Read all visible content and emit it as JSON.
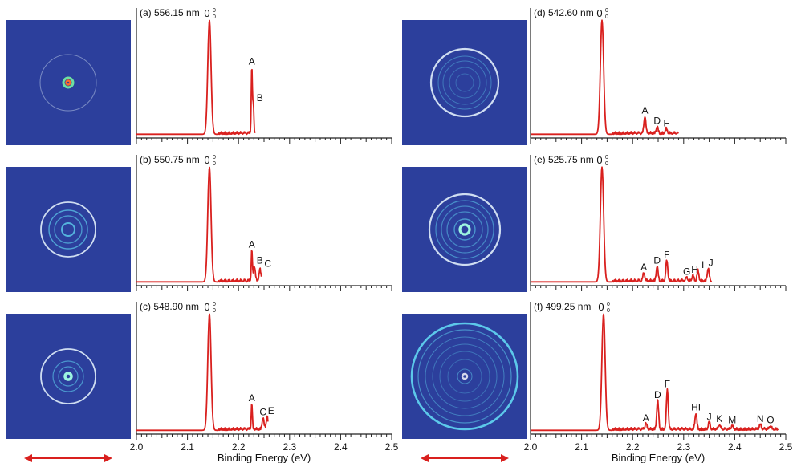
{
  "figure": {
    "xlabel": "Binding Energy (eV)",
    "x_ticks": [
      "2.0",
      "2.1",
      "2.2",
      "2.3",
      "2.4",
      "2.5"
    ],
    "colors": {
      "spectrum": "#d9201e",
      "axis": "#222222",
      "image_bg": "#2c3f9c",
      "ring": "#d8e6f5",
      "ring_bright": "#5fd0ee",
      "arrow": "#d9201e"
    },
    "left_arrow": "double-arrow",
    "right_arrow": "double-arrow"
  },
  "chart_data": [
    {
      "type": "line",
      "title": "(a) 556.15 nm",
      "xlim": [
        2.0,
        2.5
      ],
      "main_peak": {
        "label": "0",
        "x": 2.143,
        "height": 1.0
      },
      "peaks": [
        {
          "label": "A",
          "x": 2.226,
          "height": 0.58
        },
        {
          "label": "B",
          "x": 2.229,
          "height": 0.26
        }
      ],
      "x_end": 2.232
    },
    {
      "type": "line",
      "title": "(b) 550.75 nm",
      "xlim": [
        2.0,
        2.5
      ],
      "main_peak": {
        "label": "0",
        "x": 2.143,
        "height": 1.0
      },
      "peaks": [
        {
          "label": "A",
          "x": 2.226,
          "height": 0.27
        },
        {
          "label": "B",
          "x": 2.231,
          "height": 0.13
        },
        {
          "label": "C",
          "x": 2.242,
          "height": 0.1
        }
      ],
      "x_end": 2.245
    },
    {
      "type": "line",
      "title": "(c) 548.90 nm",
      "xlim": [
        2.0,
        2.5
      ],
      "main_peak": {
        "label": "0",
        "x": 2.143,
        "height": 1.0
      },
      "peaks": [
        {
          "label": "A",
          "x": 2.226,
          "height": 0.22
        },
        {
          "label": "C",
          "x": 2.248,
          "height": 0.1
        },
        {
          "label": "E",
          "x": 2.256,
          "height": 0.11
        }
      ],
      "x_end": 2.258
    },
    {
      "type": "line",
      "title": "(d) 542.60 nm",
      "xlim": [
        2.0,
        2.5
      ],
      "main_peak": {
        "label": "0",
        "x": 2.14,
        "height": 1.0
      },
      "peaks": [
        {
          "label": "A",
          "x": 2.224,
          "height": 0.15
        },
        {
          "label": "D",
          "x": 2.248,
          "height": 0.06
        },
        {
          "label": "F",
          "x": 2.266,
          "height": 0.04
        }
      ],
      "x_end": 2.29
    },
    {
      "type": "line",
      "title": "(e) 525.75 nm",
      "xlim": [
        2.0,
        2.5
      ],
      "main_peak": {
        "label": "0",
        "x": 2.14,
        "height": 1.0
      },
      "peaks": [
        {
          "label": "A",
          "x": 2.222,
          "height": 0.07
        },
        {
          "label": "D",
          "x": 2.248,
          "height": 0.13
        },
        {
          "label": "F",
          "x": 2.267,
          "height": 0.18
        },
        {
          "label": "G",
          "x": 2.306,
          "height": 0.03
        },
        {
          "label": "H",
          "x": 2.318,
          "height": 0.05
        },
        {
          "label": "I",
          "x": 2.328,
          "height": 0.09
        },
        {
          "label": "J",
          "x": 2.348,
          "height": 0.11
        }
      ],
      "x_end": 2.355
    },
    {
      "type": "line",
      "title": "(f) 499.25 nm",
      "xlim": [
        2.0,
        2.5
      ],
      "main_peak": {
        "label": "0",
        "x": 2.143,
        "height": 1.0
      },
      "peaks": [
        {
          "label": "A",
          "x": 2.226,
          "height": 0.05
        },
        {
          "label": "D",
          "x": 2.249,
          "height": 0.25
        },
        {
          "label": "F",
          "x": 2.268,
          "height": 0.34
        },
        {
          "label": "HI",
          "x": 2.324,
          "height": 0.14
        },
        {
          "label": "J",
          "x": 2.35,
          "height": 0.06
        },
        {
          "label": "K",
          "x": 2.37,
          "height": 0.04
        },
        {
          "label": "M",
          "x": 2.395,
          "height": 0.03
        },
        {
          "label": "N",
          "x": 2.45,
          "height": 0.04
        },
        {
          "label": "O",
          "x": 2.47,
          "height": 0.03
        }
      ],
      "x_end": 2.485
    }
  ]
}
